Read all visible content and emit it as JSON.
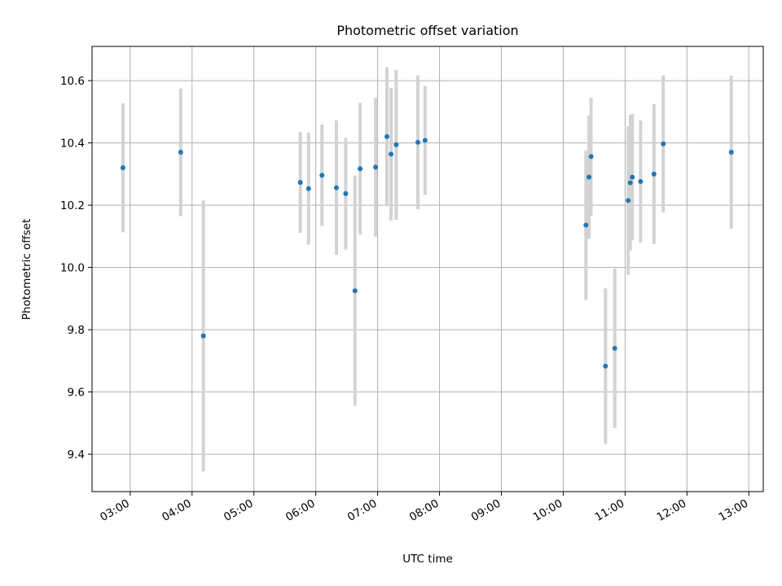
{
  "chart_data": {
    "type": "scatter",
    "title": "Photometric offset variation",
    "xlabel": "UTC time",
    "ylabel": "Photometric offset",
    "x_unit": "time of day (UTC)",
    "xlim": [
      "02:23",
      "13:14"
    ],
    "ylim": [
      9.28,
      10.71
    ],
    "xticks": [
      "03:00",
      "04:00",
      "05:00",
      "06:00",
      "07:00",
      "08:00",
      "09:00",
      "10:00",
      "11:00",
      "12:00",
      "13:00"
    ],
    "yticks": [
      "9.4",
      "9.6",
      "9.8",
      "10.0",
      "10.2",
      "10.4",
      "10.6"
    ],
    "grid": true,
    "errorbar_color": "#d3d3d3",
    "marker_color": "#1f77b4",
    "points": [
      {
        "x": "02:53",
        "y": 10.32,
        "err": 0.207
      },
      {
        "x": "03:49",
        "y": 10.37,
        "err": 0.205
      },
      {
        "x": "04:11",
        "y": 9.78,
        "err": 0.435
      },
      {
        "x": "05:45",
        "y": 10.273,
        "err": 0.162
      },
      {
        "x": "05:53",
        "y": 10.253,
        "err": 0.18
      },
      {
        "x": "06:06",
        "y": 10.296,
        "err": 0.163
      },
      {
        "x": "06:20",
        "y": 10.256,
        "err": 0.216
      },
      {
        "x": "06:29",
        "y": 10.237,
        "err": 0.18
      },
      {
        "x": "06:38",
        "y": 9.925,
        "err": 0.37
      },
      {
        "x": "06:43",
        "y": 10.317,
        "err": 0.212
      },
      {
        "x": "06:58",
        "y": 10.322,
        "err": 0.223
      },
      {
        "x": "07:09",
        "y": 10.42,
        "err": 0.223
      },
      {
        "x": "07:13",
        "y": 10.364,
        "err": 0.213
      },
      {
        "x": "07:18",
        "y": 10.394,
        "err": 0.241
      },
      {
        "x": "07:39",
        "y": 10.402,
        "err": 0.215
      },
      {
        "x": "07:46",
        "y": 10.408,
        "err": 0.175
      },
      {
        "x": "10:22",
        "y": 10.136,
        "err": 0.24
      },
      {
        "x": "10:25",
        "y": 10.29,
        "err": 0.198
      },
      {
        "x": "10:27",
        "y": 10.356,
        "err": 0.19
      },
      {
        "x": "10:41",
        "y": 9.683,
        "err": 0.25
      },
      {
        "x": "10:50",
        "y": 9.74,
        "err": 0.256
      },
      {
        "x": "11:03",
        "y": 10.215,
        "err": 0.239
      },
      {
        "x": "11:05",
        "y": 10.272,
        "err": 0.218
      },
      {
        "x": "11:07",
        "y": 10.29,
        "err": 0.203
      },
      {
        "x": "11:15",
        "y": 10.276,
        "err": 0.196
      },
      {
        "x": "11:28",
        "y": 10.3,
        "err": 0.225
      },
      {
        "x": "11:37",
        "y": 10.397,
        "err": 0.22
      },
      {
        "x": "12:43",
        "y": 10.37,
        "err": 0.246
      }
    ]
  }
}
